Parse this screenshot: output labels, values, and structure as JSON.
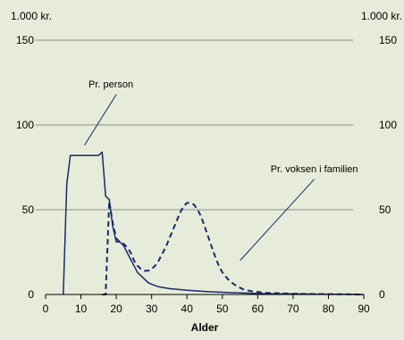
{
  "chart_data": {
    "type": "line",
    "title": "",
    "xlabel": "Alder",
    "ylabel_left_unit": "1.000 kr.",
    "ylabel_right_unit": "1.000 kr.",
    "xlim": [
      0,
      90
    ],
    "ylim": [
      0,
      150
    ],
    "x_ticks": [
      0,
      10,
      20,
      30,
      40,
      50,
      60,
      70,
      80,
      90
    ],
    "x_tick_labels": [
      "0",
      "10",
      "20",
      "30",
      "40",
      "50",
      "60",
      "70",
      "80",
      "90"
    ],
    "y_ticks": [
      0,
      50,
      100,
      150
    ],
    "y_tick_labels": [
      "0",
      "50",
      "100",
      "150"
    ],
    "grid": "horizontal",
    "background_color": "#e6ecd9",
    "grid_color": "#8c8c8c",
    "series": [
      {
        "name": "Pr. person",
        "color": "#1a2a6c",
        "line_style": "solid",
        "x": [
          5,
          6,
          7,
          8,
          9,
          10,
          11,
          12,
          13,
          14,
          15,
          16,
          17,
          18,
          19,
          20,
          21,
          22,
          23,
          24,
          25,
          26,
          27,
          28,
          29,
          30,
          32,
          35,
          40,
          45,
          50,
          55,
          60,
          65,
          70,
          75,
          80,
          85,
          90
        ],
        "values": [
          0,
          65,
          82,
          82,
          82,
          82,
          82,
          82,
          82,
          82,
          82,
          84,
          58,
          56,
          40,
          31,
          31,
          29,
          25,
          21,
          17,
          13,
          11,
          9,
          7,
          6,
          4.5,
          3.5,
          2.5,
          1.8,
          1.3,
          0.9,
          0.6,
          0.4,
          0.3,
          0.2,
          0.1,
          0.1,
          0
        ]
      },
      {
        "name": "Pr. voksen i familien",
        "color": "#1a2a6c",
        "line_style": "dashed",
        "x": [
          16,
          17,
          18,
          19,
          20,
          21,
          22,
          23,
          24,
          25,
          26,
          27,
          28,
          29,
          30,
          31,
          32,
          33,
          34,
          35,
          36,
          37,
          38,
          39,
          40,
          41,
          42,
          43,
          44,
          45,
          46,
          47,
          48,
          49,
          50,
          52,
          54,
          56,
          58,
          60,
          62,
          65,
          70,
          75,
          80,
          85,
          90
        ],
        "values": [
          0,
          0,
          55,
          42,
          33,
          31,
          30,
          28,
          25,
          20,
          17,
          15,
          14,
          14,
          15,
          17,
          20,
          24,
          28,
          33,
          38,
          43,
          48,
          52,
          54,
          54,
          53,
          50,
          46,
          40,
          34,
          28,
          22,
          17,
          13,
          8,
          5,
          3,
          2,
          1.5,
          1,
          0.8,
          0.5,
          0.3,
          0.2,
          0.1,
          0
        ]
      }
    ],
    "annotations": [
      {
        "text": "Pr. person",
        "points_to": {
          "x": 11,
          "y": 88
        },
        "label_at": {
          "x": 20,
          "y": 118
        }
      },
      {
        "text": "Pr. voksen i familien",
        "points_to": {
          "x": 55,
          "y": 20
        },
        "label_at": {
          "x": 76,
          "y": 68
        }
      }
    ]
  }
}
